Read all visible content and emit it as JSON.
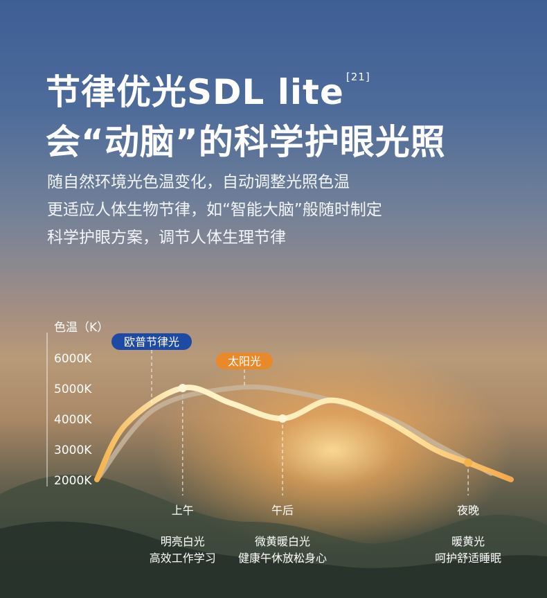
{
  "header": {
    "title_line1": "节律优光SDL lite",
    "title_sup": "[21]",
    "title_line2": "会“动脑”的科学护眼光照",
    "subtitle_lines": [
      "随自然环境光色温变化，自动调整光照色温",
      "更适应人体生物节律，如“智能大脑”般随时制定",
      "科学护眼方案，调节人体生理节律"
    ]
  },
  "chart_data": {
    "type": "line",
    "ylabel": "色温（K）",
    "yticks": [
      "6000K",
      "5000K",
      "4000K",
      "3000K",
      "2000K"
    ],
    "ytick_values": [
      6000,
      5000,
      4000,
      3000,
      2000
    ],
    "ylim": [
      2000,
      6000
    ],
    "x_labels": [
      {
        "label": "上午",
        "x": 0.3,
        "caption": [
          "明亮白光",
          "高效工作学习"
        ]
      },
      {
        "label": "午后",
        "x": 0.65,
        "caption": [
          "微黄暖白光",
          "健康午休放松身心"
        ]
      },
      {
        "label": "夜晚",
        "x": 1.3,
        "caption": [
          "暖黄光",
          "呵护舒适睡眠"
        ]
      }
    ],
    "xlim": [
      0,
      1.45
    ],
    "series": [
      {
        "name": "欧普节律光",
        "color": "#f7c25a",
        "badge_color": "#1f4aa3",
        "points": [
          [
            0,
            2000
          ],
          [
            0.1,
            3800
          ],
          [
            0.3,
            5000
          ],
          [
            0.47,
            4500
          ],
          [
            0.65,
            4000
          ],
          [
            0.82,
            4600
          ],
          [
            1.0,
            4000
          ],
          [
            1.18,
            3000
          ],
          [
            1.3,
            2550
          ],
          [
            1.45,
            2000
          ]
        ],
        "markers": [
          [
            0.3,
            5000
          ],
          [
            0.65,
            4000
          ],
          [
            1.3,
            2550
          ]
        ]
      },
      {
        "name": "太阳光",
        "color": "#c9b8a0",
        "badge_color": "#e8892a",
        "points": [
          [
            0,
            2000
          ],
          [
            0.2,
            4300
          ],
          [
            0.48,
            5000
          ],
          [
            0.7,
            4850
          ],
          [
            1.0,
            4100
          ],
          [
            1.2,
            3100
          ],
          [
            1.38,
            2200
          ]
        ]
      }
    ]
  }
}
